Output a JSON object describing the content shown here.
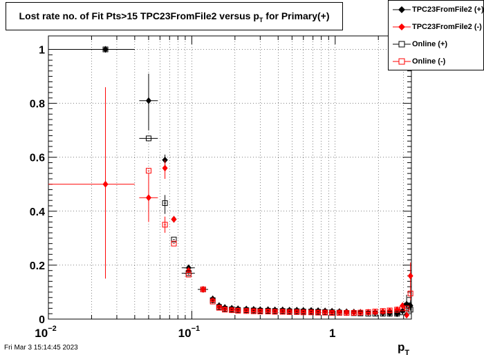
{
  "title": {
    "main": "Lost rate no. of Fit Pts>15 TPC23FromFile2 versus p",
    "sub": "T",
    "tail": " for Primary(+)"
  },
  "footer": "Fri Mar  3 15:14:45 2023",
  "colors": {
    "black": "#000000",
    "red": "#ff0000",
    "grid": "#000000"
  },
  "legend": [
    {
      "label": "TPC23FromFile2 (+)",
      "marker": "diamond-filled",
      "color": "#000000"
    },
    {
      "label": "TPC23FromFile2 (-)",
      "marker": "diamond-filled",
      "color": "#ff0000"
    },
    {
      "label": "Online (+)",
      "marker": "square-open",
      "color": "#000000"
    },
    {
      "label": "Online (-)",
      "marker": "square-open",
      "color": "#ff0000"
    }
  ],
  "chart_data": {
    "type": "scatter",
    "x_scale": "log",
    "xlim": [
      0.01,
      3.4
    ],
    "ylim": [
      0,
      1.05
    ],
    "grid": true,
    "legend_position": "top-right",
    "xlabel": "p",
    "xlabel_sub": "T",
    "x_ticks": [
      {
        "value": 0.01,
        "base": "10",
        "exp": "−2"
      },
      {
        "value": 0.1,
        "base": "10",
        "exp": "−1"
      },
      {
        "value": 1,
        "base": "1",
        "exp": ""
      }
    ],
    "y_ticks": [
      "0",
      "0.2",
      "0.4",
      "0.6",
      "0.8",
      "1"
    ],
    "series": [
      {
        "name": "TPC23FromFile2 (+)",
        "marker": "diamond-filled",
        "color": "#000000",
        "points": [
          {
            "x": 0.025,
            "y": 1.0,
            "xerr": [
              0.01,
              0.04
            ],
            "yerr": [
              1.0,
              1.0
            ]
          },
          {
            "x": 0.05,
            "y": 0.81,
            "xerr": [
              0.043,
              0.058
            ],
            "yerr": [
              0.7,
              0.91
            ]
          },
          {
            "x": 0.065,
            "y": 0.59,
            "xerr": [
              0.062,
              0.068
            ],
            "yerr": [
              0.56,
              0.61
            ]
          },
          {
            "x": 0.075,
            "y": 0.37
          },
          {
            "x": 0.095,
            "y": 0.19,
            "xerr": [
              0.085,
              0.105
            ],
            "yerr": [
              0.17,
              0.2
            ]
          },
          {
            "x": 0.12,
            "y": 0.11,
            "xerr": [
              0.11,
              0.13
            ]
          },
          {
            "x": 0.14,
            "y": 0.075
          },
          {
            "x": 0.155,
            "y": 0.05
          },
          {
            "x": 0.17,
            "y": 0.043
          },
          {
            "x": 0.19,
            "y": 0.04
          },
          {
            "x": 0.21,
            "y": 0.038
          },
          {
            "x": 0.24,
            "y": 0.037
          },
          {
            "x": 0.27,
            "y": 0.036
          },
          {
            "x": 0.3,
            "y": 0.035
          },
          {
            "x": 0.34,
            "y": 0.035
          },
          {
            "x": 0.38,
            "y": 0.034
          },
          {
            "x": 0.43,
            "y": 0.034
          },
          {
            "x": 0.48,
            "y": 0.033
          },
          {
            "x": 0.54,
            "y": 0.033
          },
          {
            "x": 0.6,
            "y": 0.032
          },
          {
            "x": 0.68,
            "y": 0.032
          },
          {
            "x": 0.76,
            "y": 0.031
          },
          {
            "x": 0.85,
            "y": 0.03
          },
          {
            "x": 0.95,
            "y": 0.029
          },
          {
            "x": 1.07,
            "y": 0.028
          },
          {
            "x": 1.2,
            "y": 0.027
          },
          {
            "x": 1.35,
            "y": 0.026
          },
          {
            "x": 1.5,
            "y": 0.025
          },
          {
            "x": 1.7,
            "y": 0.024
          },
          {
            "x": 1.9,
            "y": 0.023
          },
          {
            "x": 2.15,
            "y": 0.022
          },
          {
            "x": 2.4,
            "y": 0.021
          },
          {
            "x": 2.7,
            "y": 0.02
          },
          {
            "x": 2.95,
            "y": 0.03
          },
          {
            "x": 3.15,
            "y": 0.055,
            "yerr": [
              0.02,
              0.09
            ]
          },
          {
            "x": 3.35,
            "y": 0.05,
            "yerr": [
              0.03,
              0.07
            ]
          }
        ]
      },
      {
        "name": "TPC23FromFile2 (-)",
        "marker": "diamond-filled",
        "color": "#ff0000",
        "points": [
          {
            "x": 0.025,
            "y": 0.5,
            "xerr": [
              0.01,
              0.04
            ],
            "yerr": [
              0.15,
              0.86
            ]
          },
          {
            "x": 0.05,
            "y": 0.45,
            "xerr": [
              0.043,
              0.058
            ],
            "yerr": [
              0.36,
              0.54
            ]
          },
          {
            "x": 0.065,
            "y": 0.56,
            "yerr": [
              0.52,
              0.59
            ]
          },
          {
            "x": 0.075,
            "y": 0.37
          },
          {
            "x": 0.095,
            "y": 0.18
          },
          {
            "x": 0.12,
            "y": 0.11
          },
          {
            "x": 0.14,
            "y": 0.07
          },
          {
            "x": 0.155,
            "y": 0.045
          },
          {
            "x": 0.17,
            "y": 0.038
          },
          {
            "x": 0.19,
            "y": 0.035
          },
          {
            "x": 0.21,
            "y": 0.033
          },
          {
            "x": 0.24,
            "y": 0.032
          },
          {
            "x": 0.27,
            "y": 0.031
          },
          {
            "x": 0.3,
            "y": 0.03
          },
          {
            "x": 0.34,
            "y": 0.03
          },
          {
            "x": 0.38,
            "y": 0.029
          },
          {
            "x": 0.43,
            "y": 0.029
          },
          {
            "x": 0.48,
            "y": 0.028
          },
          {
            "x": 0.54,
            "y": 0.028
          },
          {
            "x": 0.6,
            "y": 0.027
          },
          {
            "x": 0.68,
            "y": 0.027
          },
          {
            "x": 0.76,
            "y": 0.026
          },
          {
            "x": 0.85,
            "y": 0.026
          },
          {
            "x": 0.95,
            "y": 0.025
          },
          {
            "x": 1.07,
            "y": 0.025
          },
          {
            "x": 1.2,
            "y": 0.024
          },
          {
            "x": 1.35,
            "y": 0.024
          },
          {
            "x": 1.5,
            "y": 0.024
          },
          {
            "x": 1.7,
            "y": 0.025
          },
          {
            "x": 1.9,
            "y": 0.026
          },
          {
            "x": 2.15,
            "y": 0.028
          },
          {
            "x": 2.4,
            "y": 0.03
          },
          {
            "x": 2.7,
            "y": 0.035
          },
          {
            "x": 2.95,
            "y": 0.05
          },
          {
            "x": 3.15,
            "y": 0.015
          },
          {
            "x": 3.35,
            "y": 0.16,
            "yerr": [
              0.12,
              0.21
            ]
          }
        ]
      },
      {
        "name": "Online (+)",
        "marker": "square-open",
        "color": "#000000",
        "points": [
          {
            "x": 0.025,
            "y": 1.0
          },
          {
            "x": 0.05,
            "y": 0.67,
            "xerr": [
              0.043,
              0.058
            ]
          },
          {
            "x": 0.065,
            "y": 0.43,
            "yerr": [
              0.39,
              0.46
            ]
          },
          {
            "x": 0.075,
            "y": 0.295
          },
          {
            "x": 0.095,
            "y": 0.17,
            "xerr": [
              0.085,
              0.105
            ]
          },
          {
            "x": 0.12,
            "y": 0.11
          },
          {
            "x": 0.14,
            "y": 0.07
          },
          {
            "x": 0.155,
            "y": 0.045
          },
          {
            "x": 0.17,
            "y": 0.038
          },
          {
            "x": 0.19,
            "y": 0.036
          },
          {
            "x": 0.21,
            "y": 0.034
          },
          {
            "x": 0.24,
            "y": 0.033
          },
          {
            "x": 0.27,
            "y": 0.032
          },
          {
            "x": 0.3,
            "y": 0.031
          },
          {
            "x": 0.34,
            "y": 0.031
          },
          {
            "x": 0.38,
            "y": 0.03
          },
          {
            "x": 0.43,
            "y": 0.03
          },
          {
            "x": 0.48,
            "y": 0.029
          },
          {
            "x": 0.54,
            "y": 0.029
          },
          {
            "x": 0.6,
            "y": 0.028
          },
          {
            "x": 0.68,
            "y": 0.028
          },
          {
            "x": 0.76,
            "y": 0.027
          },
          {
            "x": 0.85,
            "y": 0.026
          },
          {
            "x": 0.95,
            "y": 0.025
          },
          {
            "x": 1.07,
            "y": 0.024
          },
          {
            "x": 1.2,
            "y": 0.023
          },
          {
            "x": 1.35,
            "y": 0.022
          },
          {
            "x": 1.5,
            "y": 0.021
          },
          {
            "x": 1.7,
            "y": 0.02
          },
          {
            "x": 1.9,
            "y": 0.02
          },
          {
            "x": 2.15,
            "y": 0.02
          },
          {
            "x": 2.4,
            "y": 0.02
          },
          {
            "x": 2.7,
            "y": 0.02
          },
          {
            "x": 2.95,
            "y": 0.025
          },
          {
            "x": 3.15,
            "y": 0.05
          },
          {
            "x": 3.35,
            "y": 0.035
          }
        ]
      },
      {
        "name": "Online (-)",
        "marker": "square-open",
        "color": "#ff0000",
        "points": [
          {
            "x": 0.05,
            "y": 0.55
          },
          {
            "x": 0.065,
            "y": 0.35,
            "yerr": [
              0.32,
              0.38
            ]
          },
          {
            "x": 0.075,
            "y": 0.28
          },
          {
            "x": 0.095,
            "y": 0.165
          },
          {
            "x": 0.12,
            "y": 0.11
          },
          {
            "x": 0.14,
            "y": 0.065
          },
          {
            "x": 0.155,
            "y": 0.042
          },
          {
            "x": 0.17,
            "y": 0.035
          },
          {
            "x": 0.19,
            "y": 0.033
          },
          {
            "x": 0.21,
            "y": 0.031
          },
          {
            "x": 0.24,
            "y": 0.03
          },
          {
            "x": 0.27,
            "y": 0.029
          },
          {
            "x": 0.3,
            "y": 0.028
          },
          {
            "x": 0.34,
            "y": 0.028
          },
          {
            "x": 0.38,
            "y": 0.027
          },
          {
            "x": 0.43,
            "y": 0.027
          },
          {
            "x": 0.48,
            "y": 0.026
          },
          {
            "x": 0.54,
            "y": 0.026
          },
          {
            "x": 0.6,
            "y": 0.025
          },
          {
            "x": 0.68,
            "y": 0.025
          },
          {
            "x": 0.76,
            "y": 0.024
          },
          {
            "x": 0.85,
            "y": 0.024
          },
          {
            "x": 0.95,
            "y": 0.023
          },
          {
            "x": 1.07,
            "y": 0.023
          },
          {
            "x": 1.2,
            "y": 0.023
          },
          {
            "x": 1.35,
            "y": 0.023
          },
          {
            "x": 1.5,
            "y": 0.024
          },
          {
            "x": 1.7,
            "y": 0.026
          },
          {
            "x": 1.9,
            "y": 0.028
          },
          {
            "x": 2.15,
            "y": 0.03
          },
          {
            "x": 2.4,
            "y": 0.032
          },
          {
            "x": 2.7,
            "y": 0.035
          },
          {
            "x": 2.95,
            "y": 0.04
          },
          {
            "x": 3.15,
            "y": 0.04
          },
          {
            "x": 3.35,
            "y": 0.095,
            "yerr": [
              0.07,
              0.12
            ]
          }
        ]
      }
    ]
  }
}
